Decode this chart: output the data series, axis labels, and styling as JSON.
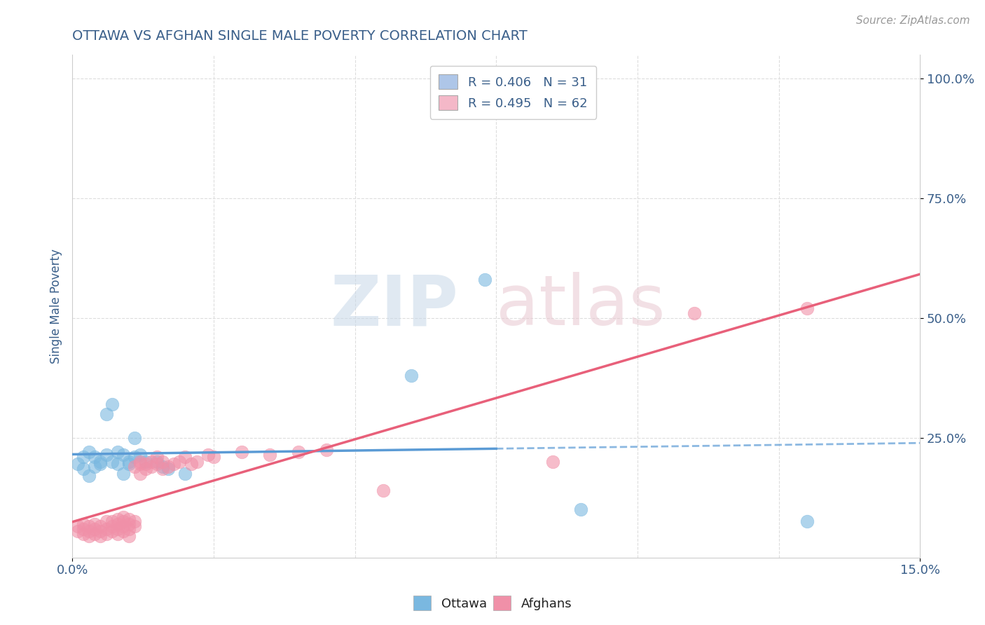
{
  "title": "OTTAWA VS AFGHAN SINGLE MALE POVERTY CORRELATION CHART",
  "source": "Source: ZipAtlas.com",
  "ylabel": "Single Male Poverty",
  "xlim": [
    0.0,
    0.15
  ],
  "ylim": [
    0.0,
    1.05
  ],
  "ytick_labels": [
    "25.0%",
    "50.0%",
    "75.0%",
    "100.0%"
  ],
  "ytick_positions": [
    0.25,
    0.5,
    0.75,
    1.0
  ],
  "legend_entries": [
    {
      "label": "R = 0.406   N = 31",
      "color": "#aec6e8"
    },
    {
      "label": "R = 0.495   N = 62",
      "color": "#f4b8c8"
    }
  ],
  "ottawa_color": "#7ab8e0",
  "afghan_color": "#f090a8",
  "ottawa_line_color": "#5b9bd5",
  "afghan_line_color": "#e8607a",
  "title_color": "#3a5f8a",
  "axis_label_color": "#3a5f8a",
  "tick_color": "#3a5f8a",
  "source_color": "#999999",
  "grid_color": "#dddddd",
  "background_color": "#ffffff",
  "ottawa_scatter": [
    [
      0.001,
      0.195
    ],
    [
      0.002,
      0.21
    ],
    [
      0.002,
      0.185
    ],
    [
      0.003,
      0.22
    ],
    [
      0.003,
      0.17
    ],
    [
      0.004,
      0.19
    ],
    [
      0.004,
      0.21
    ],
    [
      0.005,
      0.2
    ],
    [
      0.005,
      0.195
    ],
    [
      0.006,
      0.215
    ],
    [
      0.006,
      0.3
    ],
    [
      0.007,
      0.2
    ],
    [
      0.007,
      0.32
    ],
    [
      0.008,
      0.195
    ],
    [
      0.008,
      0.22
    ],
    [
      0.009,
      0.215
    ],
    [
      0.009,
      0.175
    ],
    [
      0.01,
      0.2
    ],
    [
      0.01,
      0.195
    ],
    [
      0.011,
      0.25
    ],
    [
      0.011,
      0.21
    ],
    [
      0.012,
      0.215
    ],
    [
      0.013,
      0.2
    ],
    [
      0.015,
      0.2
    ],
    [
      0.016,
      0.19
    ],
    [
      0.017,
      0.185
    ],
    [
      0.02,
      0.175
    ],
    [
      0.06,
      0.38
    ],
    [
      0.073,
      0.58
    ],
    [
      0.09,
      0.1
    ],
    [
      0.13,
      0.075
    ]
  ],
  "afghan_scatter": [
    [
      0.001,
      0.065
    ],
    [
      0.001,
      0.055
    ],
    [
      0.002,
      0.07
    ],
    [
      0.002,
      0.05
    ],
    [
      0.002,
      0.06
    ],
    [
      0.003,
      0.055
    ],
    [
      0.003,
      0.065
    ],
    [
      0.003,
      0.045
    ],
    [
      0.004,
      0.05
    ],
    [
      0.004,
      0.06
    ],
    [
      0.004,
      0.07
    ],
    [
      0.005,
      0.055
    ],
    [
      0.005,
      0.065
    ],
    [
      0.005,
      0.045
    ],
    [
      0.006,
      0.06
    ],
    [
      0.006,
      0.075
    ],
    [
      0.006,
      0.05
    ],
    [
      0.007,
      0.065
    ],
    [
      0.007,
      0.055
    ],
    [
      0.007,
      0.075
    ],
    [
      0.008,
      0.07
    ],
    [
      0.008,
      0.06
    ],
    [
      0.008,
      0.05
    ],
    [
      0.008,
      0.08
    ],
    [
      0.009,
      0.065
    ],
    [
      0.009,
      0.075
    ],
    [
      0.009,
      0.055
    ],
    [
      0.009,
      0.085
    ],
    [
      0.01,
      0.07
    ],
    [
      0.01,
      0.06
    ],
    [
      0.01,
      0.08
    ],
    [
      0.01,
      0.045
    ],
    [
      0.011,
      0.075
    ],
    [
      0.011,
      0.065
    ],
    [
      0.011,
      0.19
    ],
    [
      0.012,
      0.195
    ],
    [
      0.012,
      0.2
    ],
    [
      0.012,
      0.175
    ],
    [
      0.013,
      0.195
    ],
    [
      0.013,
      0.185
    ],
    [
      0.014,
      0.2
    ],
    [
      0.014,
      0.19
    ],
    [
      0.015,
      0.195
    ],
    [
      0.015,
      0.21
    ],
    [
      0.016,
      0.2
    ],
    [
      0.016,
      0.185
    ],
    [
      0.017,
      0.19
    ],
    [
      0.018,
      0.195
    ],
    [
      0.019,
      0.2
    ],
    [
      0.02,
      0.21
    ],
    [
      0.021,
      0.195
    ],
    [
      0.022,
      0.2
    ],
    [
      0.024,
      0.215
    ],
    [
      0.025,
      0.21
    ],
    [
      0.03,
      0.22
    ],
    [
      0.035,
      0.215
    ],
    [
      0.04,
      0.22
    ],
    [
      0.045,
      0.225
    ],
    [
      0.055,
      0.14
    ],
    [
      0.085,
      0.2
    ],
    [
      0.11,
      0.51
    ],
    [
      0.13,
      0.52
    ]
  ]
}
